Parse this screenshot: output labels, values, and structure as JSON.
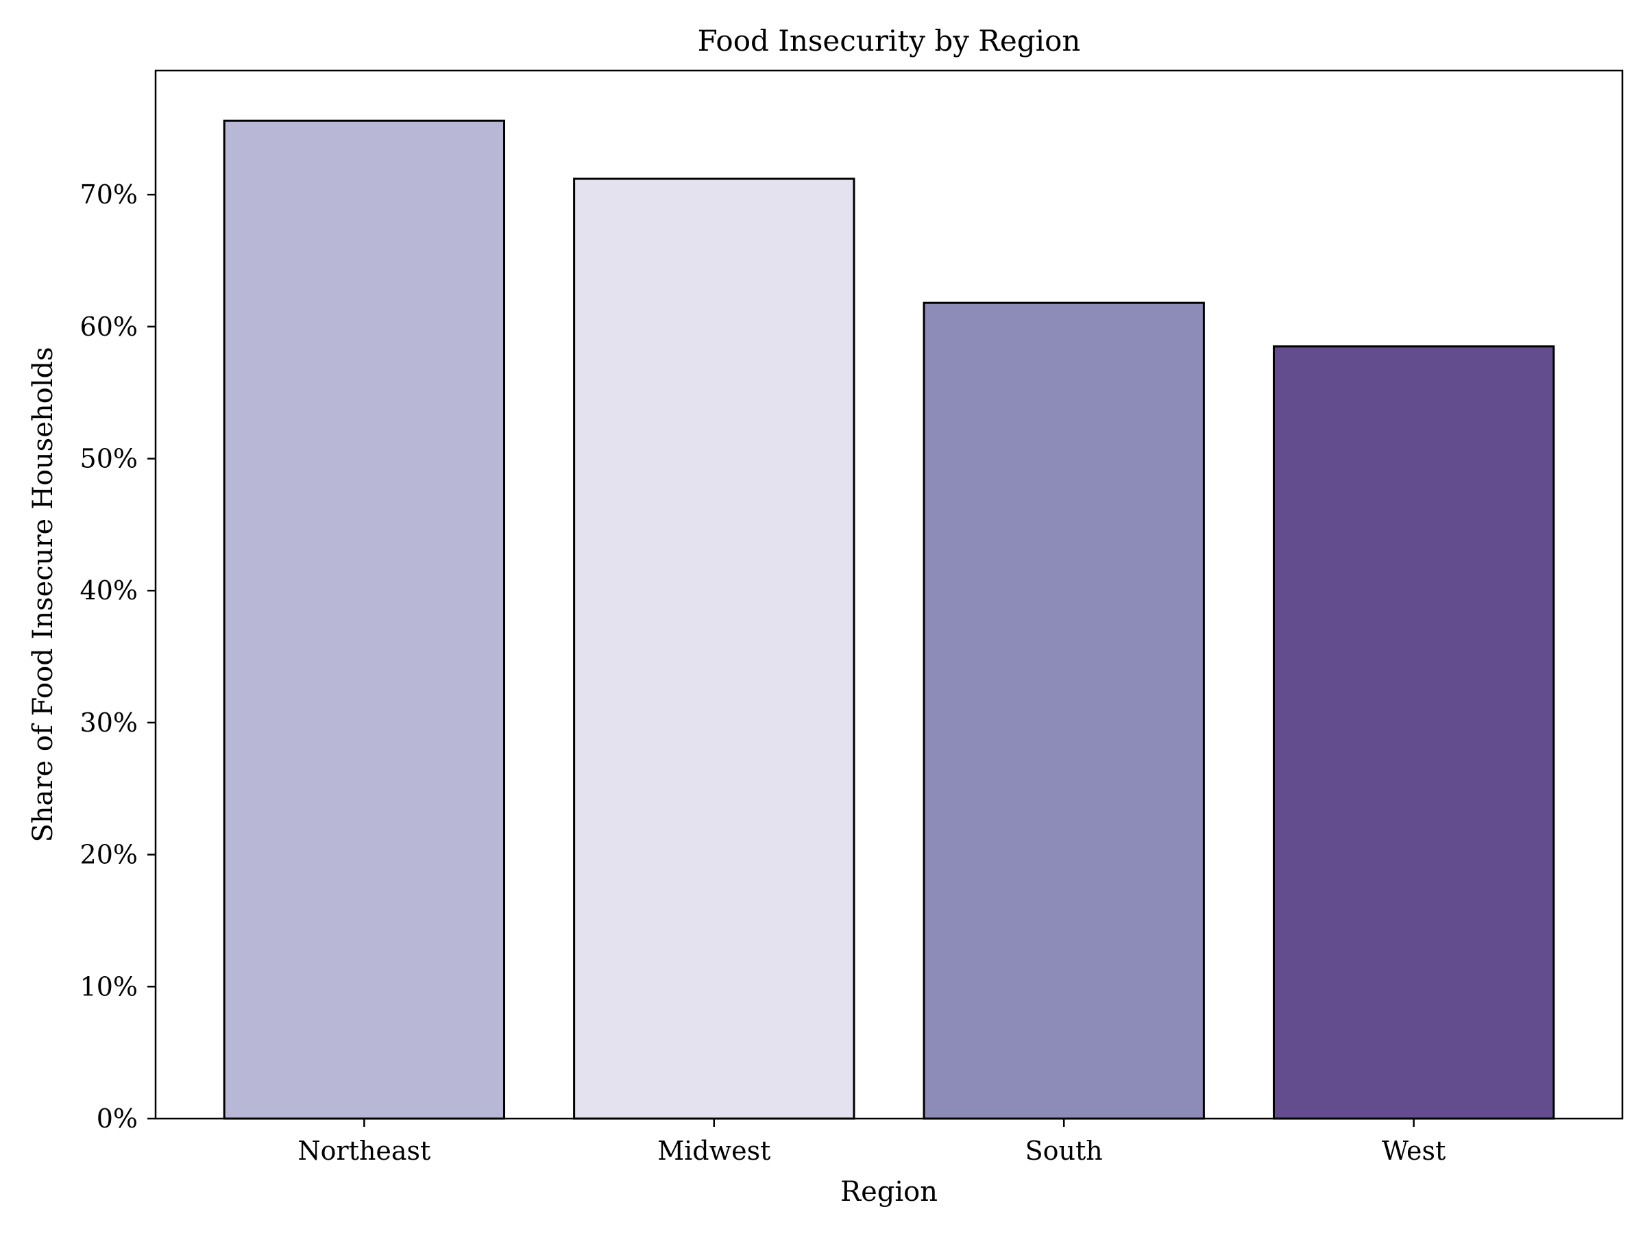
{
  "chart_data": {
    "type": "bar",
    "title": "Food Insecurity by Region",
    "xlabel": "Region",
    "ylabel": "Share of Food Insecure Households",
    "categories": [
      "Northeast",
      "Midwest",
      "South",
      "West"
    ],
    "values": [
      75.6,
      71.2,
      61.8,
      58.5
    ],
    "value_unit": "%",
    "colors": [
      "#b8b8d6",
      "#e3e2ee",
      "#8d8bb8",
      "#644d8e"
    ],
    "edge_color": "#000000",
    "ylim": [
      0,
      79.4
    ],
    "yticks": [
      0,
      10,
      20,
      30,
      40,
      50,
      60,
      70
    ],
    "ytick_labels": [
      "0%",
      "10%",
      "20%",
      "30%",
      "40%",
      "50%",
      "60%",
      "70%"
    ],
    "grid": false,
    "legend": "none"
  }
}
